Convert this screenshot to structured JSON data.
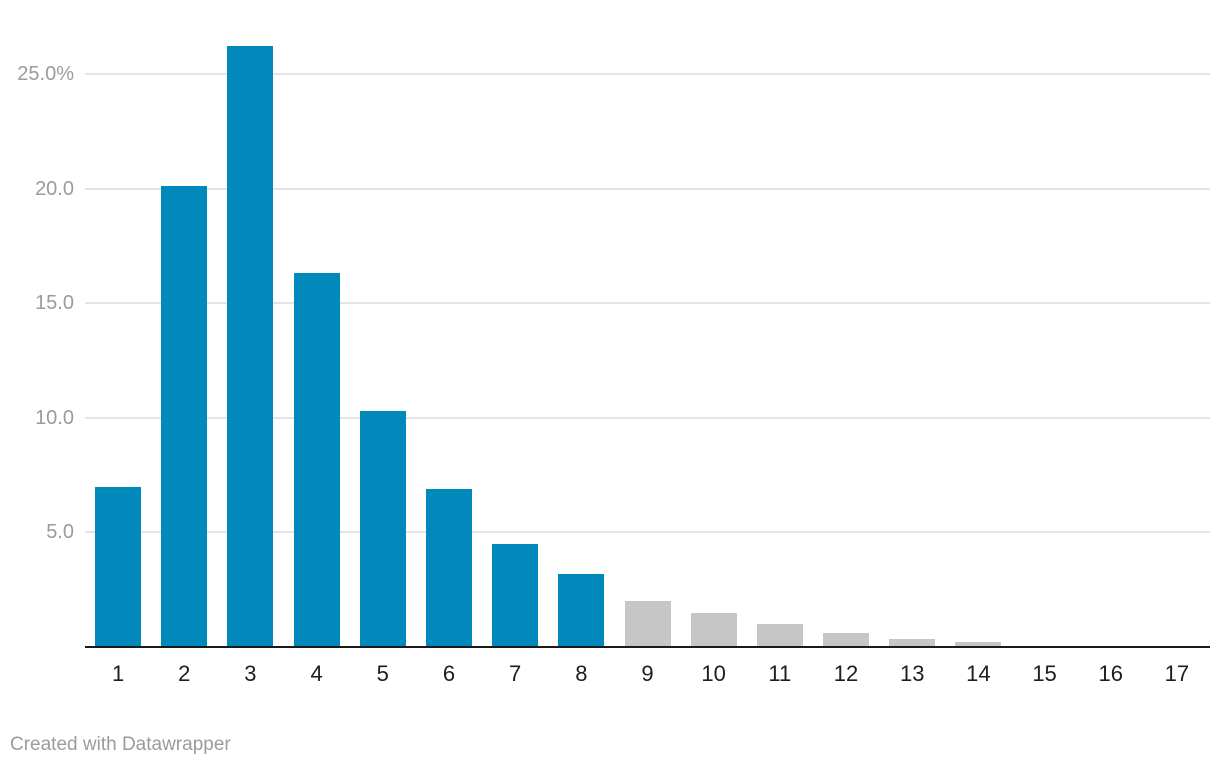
{
  "chart_data": {
    "type": "bar",
    "title": "",
    "xlabel": "",
    "ylabel": "",
    "categories": [
      "1",
      "2",
      "3",
      "4",
      "5",
      "6",
      "7",
      "8",
      "9",
      "10",
      "11",
      "12",
      "13",
      "14",
      "15",
      "16",
      "17"
    ],
    "values": [
      7.0,
      20.1,
      26.2,
      16.3,
      10.3,
      6.9,
      4.5,
      3.2,
      2.0,
      1.5,
      1.0,
      0.6,
      0.35,
      0.2,
      0,
      0,
      0
    ],
    "bar_color_keys": [
      "accent",
      "accent",
      "accent",
      "accent",
      "accent",
      "accent",
      "accent",
      "accent",
      "muted",
      "muted",
      "muted",
      "muted",
      "muted",
      "muted",
      "muted",
      "muted",
      "muted"
    ],
    "y_ticks": [
      {
        "value": 5,
        "label": "5.0"
      },
      {
        "value": 10,
        "label": "10.0"
      },
      {
        "value": 15,
        "label": "15.0"
      },
      {
        "value": 20,
        "label": "20.0"
      },
      {
        "value": 25,
        "label": "25.0%"
      }
    ],
    "ylim": [
      0,
      28
    ],
    "grid": "horizontal-only",
    "legend": "none",
    "value_unit": "percent"
  },
  "colors": {
    "accent": "#0089ba",
    "muted": "#c6c6c6",
    "gridline": "#e4e4e4",
    "axis_line": "#1a1a1a",
    "y_tick_text": "#9b9b9b",
    "x_tick_text": "#1d1d1d",
    "footer_text": "#9b9b9b",
    "background": "#ffffff"
  },
  "footer": {
    "attribution": "Created with Datawrapper"
  }
}
